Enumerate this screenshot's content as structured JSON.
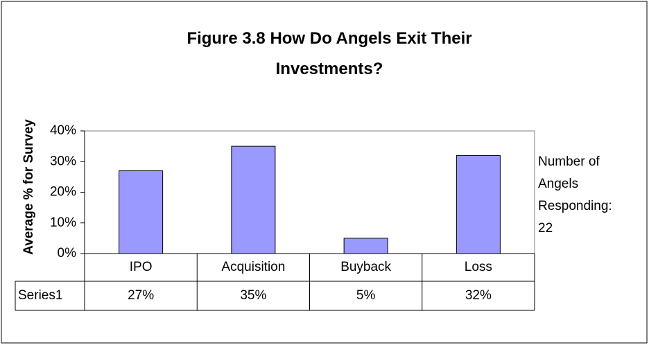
{
  "chart_data": {
    "type": "bar",
    "title": "Figure 3.8 How Do Angels Exit Their Investments?",
    "y_axis_label": "Average % for Survey",
    "categories": [
      "IPO",
      "Acquisition",
      "Buyback",
      "Loss"
    ],
    "series": [
      {
        "name": "Series1",
        "color": "#9999ff",
        "values": [
          27,
          35,
          5,
          32
        ],
        "value_labels": [
          "27%",
          "35%",
          "5%",
          "32%"
        ]
      }
    ],
    "ylim": [
      0,
      40
    ],
    "yticks": [
      {
        "value": 0,
        "label": "0%"
      },
      {
        "value": 10,
        "label": "10%"
      },
      {
        "value": 20,
        "label": "20%"
      },
      {
        "value": 30,
        "label": "30%"
      },
      {
        "value": 40,
        "label": "40%"
      }
    ],
    "annotation": "Number of Angels Responding: 22"
  }
}
